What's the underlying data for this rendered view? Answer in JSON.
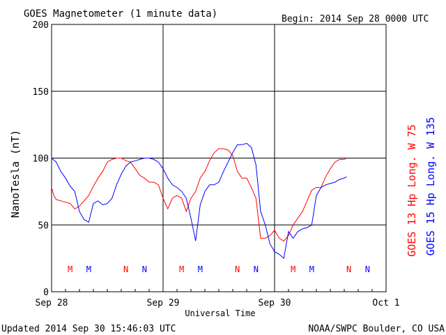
{
  "header": {
    "title": "GOES Magnetometer (1 minute data)",
    "begin_label": "Begin:  2014 Sep 28 0000 UTC"
  },
  "footer": {
    "updated": "Updated 2014 Sep 30 15:46:03 UTC",
    "credit": "NOAA/SWPC Boulder, CO USA"
  },
  "chart_data": {
    "type": "line",
    "title": "GOES Magnetometer (1 minute data)",
    "xlabel": "Universal Time",
    "ylabel": "NanoTesla (nT)",
    "xlim": [
      0,
      72
    ],
    "ylim": [
      0,
      200
    ],
    "x_unit": "hours since 2014 Sep 28 0000 UTC",
    "x_ticks": [
      {
        "x": 0,
        "label": "Sep 28"
      },
      {
        "x": 24,
        "label": "Sep 29"
      },
      {
        "x": 48,
        "label": "Sep 30"
      },
      {
        "x": 72,
        "label": "Oct 1"
      }
    ],
    "y_ticks": [
      0,
      50,
      100,
      150,
      200
    ],
    "grid": true,
    "series": [
      {
        "name": "GOES 13 Hp  Long. W 75",
        "color": "#ff0000",
        "x": [
          0,
          0.5,
          1,
          2,
          3,
          4,
          5,
          6,
          6.5,
          7,
          8,
          9,
          10,
          11,
          12,
          13,
          14,
          15,
          16,
          17,
          18,
          19,
          20,
          21,
          22,
          23,
          24,
          25,
          26,
          27,
          28,
          29,
          30,
          31,
          32,
          33,
          34,
          35,
          36,
          37,
          38,
          39,
          40,
          41,
          42,
          43,
          44,
          45,
          46,
          47,
          48,
          49,
          50,
          51,
          52,
          53,
          54,
          55,
          56,
          57,
          58,
          59,
          60,
          61,
          62,
          63,
          63.5
        ],
        "values": [
          78,
          72,
          69,
          68,
          67,
          66,
          62,
          64,
          66,
          68,
          72,
          79,
          85,
          90,
          97,
          99,
          100,
          100,
          98,
          97,
          92,
          87,
          85,
          82,
          82,
          80,
          70,
          62,
          70,
          72,
          70,
          60,
          70,
          75,
          85,
          90,
          98,
          104,
          107,
          107,
          106,
          102,
          90,
          85,
          85,
          78,
          70,
          40,
          40,
          42,
          46,
          40,
          38,
          42,
          50,
          55,
          60,
          68,
          76,
          78,
          78,
          86,
          92,
          97,
          99,
          99,
          100
        ]
      },
      {
        "name": "GOES 15 Hp  Long. W 135",
        "color": "#0000ff",
        "x": [
          0,
          1,
          2,
          3,
          4,
          5,
          6,
          7,
          8,
          9,
          10,
          11,
          12,
          13,
          14,
          15,
          16,
          17,
          18,
          19,
          20,
          21,
          22,
          23,
          24,
          25,
          26,
          27,
          28,
          29,
          30,
          31,
          32,
          33,
          34,
          35,
          36,
          37,
          38,
          39,
          40,
          41,
          42,
          43,
          44,
          45,
          46,
          47,
          48,
          49,
          50,
          51,
          52,
          53,
          54,
          55,
          56,
          57,
          58,
          59,
          60,
          61,
          62,
          63,
          63.5
        ],
        "values": [
          100,
          97,
          90,
          85,
          79,
          75,
          60,
          54,
          52,
          66,
          68,
          65,
          66,
          70,
          80,
          88,
          94,
          97,
          98,
          99,
          100,
          100,
          99,
          97,
          92,
          85,
          80,
          78,
          75,
          70,
          55,
          38,
          65,
          75,
          80,
          80,
          82,
          90,
          97,
          104,
          110,
          110,
          111,
          108,
          95,
          60,
          50,
          36,
          30,
          28,
          25,
          45,
          40,
          45,
          47,
          48,
          50,
          72,
          78,
          80,
          81,
          82,
          84,
          85,
          86
        ]
      }
    ],
    "markers": [
      {
        "x": 4,
        "label": "M",
        "color": "#ff0000"
      },
      {
        "x": 8,
        "label": "M",
        "color": "#0000ff"
      },
      {
        "x": 16,
        "label": "N",
        "color": "#ff0000"
      },
      {
        "x": 20,
        "label": "N",
        "color": "#0000ff"
      },
      {
        "x": 28,
        "label": "M",
        "color": "#ff0000"
      },
      {
        "x": 32,
        "label": "M",
        "color": "#0000ff"
      },
      {
        "x": 40,
        "label": "N",
        "color": "#ff0000"
      },
      {
        "x": 44,
        "label": "N",
        "color": "#0000ff"
      },
      {
        "x": 52,
        "label": "M",
        "color": "#ff0000"
      },
      {
        "x": 56,
        "label": "M",
        "color": "#0000ff"
      },
      {
        "x": 64,
        "label": "N",
        "color": "#ff0000"
      },
      {
        "x": 68,
        "label": "N",
        "color": "#0000ff"
      }
    ],
    "legend_placement": "right (vertical)"
  }
}
